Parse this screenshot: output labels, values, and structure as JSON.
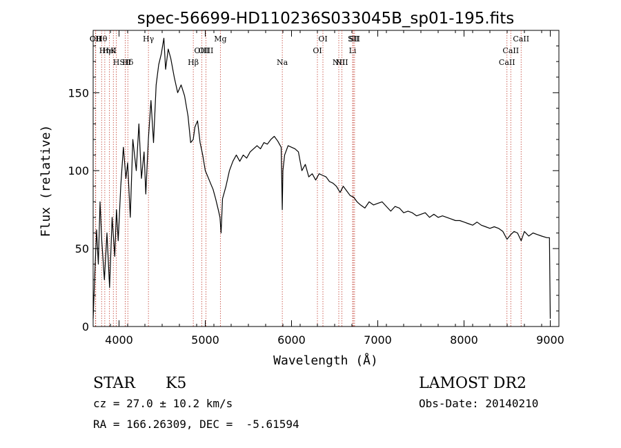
{
  "chart_data": {
    "type": "line",
    "title": "spec-56699-HD110236S033045B_sp01-195.fits",
    "xlabel": "Wavelength (Å)",
    "ylabel": "Flux (relative)",
    "xlim": [
      3700,
      9100
    ],
    "ylim": [
      0,
      190
    ],
    "xticks": [
      4000,
      5000,
      6000,
      7000,
      8000,
      9000
    ],
    "yticks": [
      0,
      50,
      100,
      150
    ],
    "grid": false,
    "series": [
      {
        "x": [
          3700,
          3720,
          3740,
          3760,
          3780,
          3800,
          3830,
          3860,
          3890,
          3920,
          3950,
          3970,
          3990,
          4020,
          4050,
          4080,
          4100,
          4130,
          4160,
          4200,
          4230,
          4260,
          4290,
          4310,
          4340,
          4370,
          4400,
          4430,
          4460,
          4490,
          4520,
          4540,
          4570,
          4600,
          4640,
          4680,
          4720,
          4760,
          4800,
          4830,
          4860,
          4880,
          4910,
          4940,
          4970,
          5000,
          5030,
          5060,
          5090,
          5120,
          5150,
          5170,
          5183,
          5200,
          5240,
          5280,
          5320,
          5360,
          5400,
          5440,
          5480,
          5520,
          5560,
          5600,
          5640,
          5680,
          5720,
          5760,
          5800,
          5840,
          5880,
          5893,
          5900,
          5920,
          5960,
          6000,
          6040,
          6080,
          6120,
          6160,
          6200,
          6240,
          6280,
          6320,
          6360,
          6400,
          6440,
          6480,
          6520,
          6563,
          6600,
          6640,
          6680,
          6720,
          6760,
          6800,
          6850,
          6900,
          6950,
          7000,
          7050,
          7100,
          7150,
          7200,
          7250,
          7300,
          7350,
          7400,
          7450,
          7500,
          7550,
          7600,
          7650,
          7700,
          7750,
          7800,
          7850,
          7900,
          7950,
          8000,
          8050,
          8100,
          8150,
          8200,
          8250,
          8300,
          8350,
          8400,
          8450,
          8498,
          8542,
          8580,
          8620,
          8662,
          8700,
          8750,
          8800,
          8850,
          8900,
          8960,
          8990,
          9000
        ],
        "values": [
          5,
          35,
          62,
          40,
          80,
          55,
          30,
          60,
          25,
          70,
          45,
          75,
          55,
          90,
          115,
          95,
          105,
          70,
          120,
          100,
          130,
          95,
          112,
          85,
          120,
          145,
          118,
          155,
          168,
          175,
          185,
          165,
          178,
          172,
          160,
          150,
          155,
          148,
          135,
          118,
          120,
          128,
          132,
          118,
          110,
          100,
          96,
          92,
          88,
          82,
          75,
          70,
          60,
          82,
          90,
          100,
          106,
          110,
          106,
          110,
          108,
          112,
          114,
          116,
          114,
          118,
          117,
          120,
          122,
          119,
          115,
          75,
          100,
          110,
          116,
          115,
          114,
          112,
          100,
          104,
          96,
          98,
          94,
          98,
          97,
          96,
          93,
          92,
          90,
          86,
          90,
          87,
          84,
          83,
          80,
          78,
          76,
          80,
          78,
          79,
          80,
          77,
          74,
          77,
          76,
          73,
          74,
          73,
          71,
          72,
          73,
          70,
          72,
          70,
          71,
          70,
          69,
          68,
          68,
          67,
          66,
          65,
          67,
          65,
          64,
          63,
          64,
          63,
          61,
          56,
          59,
          61,
          60,
          55,
          61,
          58,
          60,
          59,
          58,
          57,
          57,
          5
        ]
      }
    ],
    "lines": [
      {
        "name": "Hθ",
        "x": 3798
      },
      {
        "name": "K",
        "x": 3934
      },
      {
        "name": "Hδ",
        "x": 4102
      },
      {
        "name": "CII",
        "x": 3727
      },
      {
        "name": "HeI",
        "x": 3889
      },
      {
        "name": "SII",
        "x": 4072
      },
      {
        "name": "OII",
        "x": 3730
      },
      {
        "name": "Hη",
        "x": 3835
      },
      {
        "name": "H",
        "x": 3968
      },
      {
        "name": "Hγ",
        "x": 4341
      },
      {
        "name": "OIII",
        "x": 5007
      },
      {
        "name": "Hβ",
        "x": 4861
      },
      {
        "name": "Mg",
        "x": 5175
      },
      {
        "name": "OIII",
        "x": 4959
      },
      {
        "name": "Na",
        "x": 5893
      },
      {
        "name": "OI",
        "x": 6364
      },
      {
        "name": "OI",
        "x": 6300
      },
      {
        "name": "NII",
        "x": 6548
      },
      {
        "name": "SII",
        "x": 6717
      },
      {
        "name": "Li",
        "x": 6708
      },
      {
        "name": "NII",
        "x": 6584
      },
      {
        "name": "SII",
        "x": 6731
      },
      {
        "name": "CaII",
        "x": 8542
      },
      {
        "name": "CaII",
        "x": 8498
      },
      {
        "name": "CaII",
        "x": 8662
      }
    ]
  },
  "info": {
    "class": "STAR",
    "subclass": "K5",
    "survey": "LAMOST DR2",
    "cz": "cz = 27.0 ± 10.2 km/s",
    "obs_date": "Obs-Date: 20140210",
    "radec": "RA = 166.26309, DEC =  -5.61594"
  }
}
